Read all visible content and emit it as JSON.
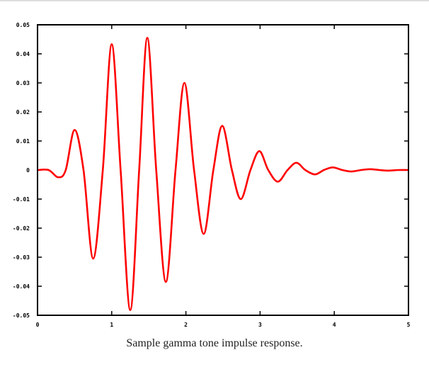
{
  "caption": "Sample gamma tone impulse response.",
  "chart_data": {
    "type": "line",
    "title": "",
    "xlabel": "",
    "ylabel": "",
    "xlim": [
      0,
      5
    ],
    "ylim": [
      -0.05,
      0.05
    ],
    "grid": false,
    "x_ticks": [
      "0",
      "1",
      "2",
      "3",
      "4",
      "5"
    ],
    "x_tick_values": [
      0,
      1,
      2,
      3,
      4,
      5
    ],
    "y_ticks": [
      "-0.05",
      "-0.04",
      "-0.03",
      "-0.02",
      "-0.01",
      "0",
      "0.01",
      "0.02",
      "0.03",
      "0.04",
      "0.05"
    ],
    "y_tick_values": [
      -0.05,
      -0.04,
      -0.03,
      -0.02,
      -0.01,
      0,
      0.01,
      0.02,
      0.03,
      0.04,
      0.05
    ],
    "line_color": "#ff0000",
    "series": [
      {
        "x": [
          0,
          0.15,
          0.28,
          0.38,
          0.5,
          0.62,
          0.75,
          0.88,
          1.0,
          1.12,
          1.25,
          1.37,
          1.48,
          1.6,
          1.73,
          1.86,
          1.98,
          2.11,
          2.24,
          2.37,
          2.49,
          2.62,
          2.74,
          2.87,
          2.99,
          3.11,
          3.24,
          3.37,
          3.49,
          3.61,
          3.74,
          3.86,
          3.98,
          4.11,
          4.23,
          4.36,
          4.48,
          4.61,
          4.73,
          4.86,
          5.0
        ],
        "y": [
          0,
          0,
          -0.0025,
          0,
          0.0138,
          0.0,
          -0.0305,
          0.0,
          0.0433,
          0.0,
          -0.0482,
          0.0,
          0.0455,
          0.0,
          -0.0385,
          0.0,
          0.03,
          0.0,
          -0.022,
          0.0,
          0.0152,
          0.0,
          -0.01,
          0.0,
          0.0065,
          0.0,
          -0.004,
          0.0,
          0.0025,
          0.0,
          -0.0015,
          0.0,
          0.0009,
          0.0,
          -0.0005,
          0.0,
          0.0003,
          0.0,
          -0.0002,
          0.0,
          0.0
        ]
      }
    ]
  }
}
